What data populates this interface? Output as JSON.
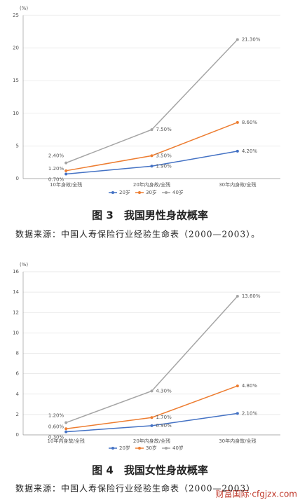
{
  "chart_data": [
    {
      "type": "line",
      "y_label": "(%)",
      "categories": [
        "10年身故/全残",
        "20年内身故/全残",
        "30年内身故/全残"
      ],
      "ylim": [
        0,
        25
      ],
      "yticks": [
        0,
        5,
        10,
        15,
        20,
        25
      ],
      "grid": true,
      "series": [
        {
          "name": "20岁",
          "color": "#4472c4",
          "values": [
            0.7,
            1.9,
            4.2
          ],
          "value_labels": [
            "0.70%",
            "1.90%",
            "4.20%"
          ]
        },
        {
          "name": "30岁",
          "color": "#ed7d31",
          "values": [
            1.2,
            3.5,
            8.6
          ],
          "value_labels": [
            "1.20%",
            "3.50%",
            "8.60%"
          ]
        },
        {
          "name": "40岁",
          "color": "#a5a5a5",
          "values": [
            2.4,
            7.5,
            21.3
          ],
          "value_labels": [
            "2.40%",
            "7.50%",
            "21.30%"
          ]
        }
      ],
      "caption": "图 3　我国男性身故概率",
      "source": "数据来源：中国人寿保险行业经验生命表（2000—2003）。"
    },
    {
      "type": "line",
      "y_label": "(%)",
      "categories": [
        "10年内身故/全残",
        "20年内身故/全残",
        "30年内身故/全残"
      ],
      "ylim": [
        0,
        16
      ],
      "yticks": [
        0,
        2,
        4,
        6,
        8,
        10,
        12,
        14,
        16
      ],
      "grid": true,
      "series": [
        {
          "name": "20岁",
          "color": "#4472c4",
          "values": [
            0.3,
            0.9,
            2.1
          ],
          "value_labels": [
            "0.30%",
            "0.90%",
            "2.10%"
          ]
        },
        {
          "name": "30岁",
          "color": "#ed7d31",
          "values": [
            0.6,
            1.7,
            4.8
          ],
          "value_labels": [
            "0.60%",
            "1.70%",
            "4.80%"
          ]
        },
        {
          "name": "40岁",
          "color": "#a5a5a5",
          "values": [
            1.2,
            4.3,
            13.6
          ],
          "value_labels": [
            "1.20%",
            "4.30%",
            "13.60%"
          ]
        }
      ],
      "caption": "图 4　我国女性身故概率",
      "source": "数据来源：中国人寿保险行业经验生命表（2000—2003）"
    }
  ],
  "watermark": "财富国际·cfgjzx.com"
}
